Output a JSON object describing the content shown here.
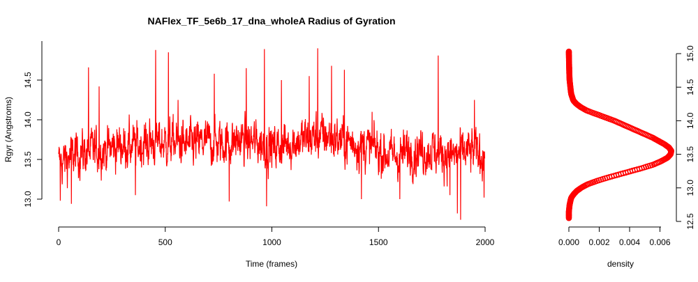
{
  "chart_data": [
    {
      "type": "line",
      "title": "NAFlex_TF_5e6b_17_dna_wholeA Radius of Gyration",
      "xlabel": "Time (frames)",
      "ylabel": "Rgyr (Angstroms)",
      "xlim": [
        0,
        2000
      ],
      "ylim": [
        12.9,
        14.75
      ],
      "xticks": [
        0,
        500,
        1000,
        1500,
        2000
      ],
      "xtick_labels": [
        "0",
        "500",
        "1000",
        "1500",
        "2000"
      ],
      "yticks": [
        13.0,
        13.5,
        14.0,
        14.5
      ],
      "ytick_labels": [
        "13.0",
        "13.5",
        "14.0",
        "14.5"
      ],
      "grid": false,
      "legend": "none",
      "color": "#ff0000",
      "series": [
        {
          "frames": 2000,
          "x": [
            0,
            50,
            100,
            150,
            200,
            250,
            300,
            350,
            400,
            450,
            500,
            550,
            600,
            650,
            700,
            750,
            800,
            850,
            900,
            950,
            1000,
            1050,
            1100,
            1150,
            1200,
            1250,
            1300,
            1350,
            1400,
            1450,
            1500,
            1550,
            1600,
            1650,
            1700,
            1750,
            1800,
            1850,
            1900,
            1950,
            2000
          ],
          "mean": [
            13.45,
            13.52,
            13.58,
            13.6,
            13.62,
            13.65,
            13.68,
            13.66,
            13.7,
            13.72,
            13.7,
            13.72,
            13.68,
            13.7,
            13.72,
            13.7,
            13.72,
            13.74,
            13.72,
            13.7,
            13.65,
            13.68,
            13.72,
            13.75,
            13.78,
            13.8,
            13.76,
            13.72,
            13.7,
            13.66,
            13.62,
            13.55,
            13.55,
            13.6,
            13.62,
            13.6,
            13.58,
            13.55,
            13.58,
            13.6,
            13.55
          ],
          "spread": 0.23,
          "spikes": [
            {
              "x": 8,
              "y": 12.98
            },
            {
              "x": 60,
              "y": 12.94
            },
            {
              "x": 140,
              "y": 14.66
            },
            {
              "x": 190,
              "y": 14.42
            },
            {
              "x": 360,
              "y": 13.05
            },
            {
              "x": 455,
              "y": 14.88
            },
            {
              "x": 515,
              "y": 14.85
            },
            {
              "x": 560,
              "y": 14.25
            },
            {
              "x": 730,
              "y": 14.58
            },
            {
              "x": 800,
              "y": 12.97
            },
            {
              "x": 880,
              "y": 14.65
            },
            {
              "x": 965,
              "y": 14.89
            },
            {
              "x": 975,
              "y": 12.91
            },
            {
              "x": 1045,
              "y": 14.5
            },
            {
              "x": 1175,
              "y": 14.55
            },
            {
              "x": 1215,
              "y": 14.9
            },
            {
              "x": 1280,
              "y": 14.68
            },
            {
              "x": 1340,
              "y": 14.63
            },
            {
              "x": 1420,
              "y": 13.0
            },
            {
              "x": 1470,
              "y": 14.1
            },
            {
              "x": 1600,
              "y": 13.0
            },
            {
              "x": 1780,
              "y": 14.81
            },
            {
              "x": 1835,
              "y": 13.05
            },
            {
              "x": 1870,
              "y": 12.82
            },
            {
              "x": 1885,
              "y": 12.74
            },
            {
              "x": 1950,
              "y": 14.25
            },
            {
              "x": 1995,
              "y": 13.02
            }
          ]
        }
      ]
    },
    {
      "type": "line",
      "xlabel": "density",
      "ylabel": "",
      "xlim": [
        0,
        0.0068
      ],
      "ylim": [
        12.5,
        15.0
      ],
      "xticks": [
        0.0,
        0.002,
        0.004,
        0.006
      ],
      "xtick_labels": [
        "0.000",
        "0.002",
        "0.004",
        "0.006"
      ],
      "yticks": [
        12.5,
        13.0,
        13.5,
        14.0,
        14.5,
        15.0
      ],
      "ytick_labels": [
        "12.5",
        "13.0",
        "13.5",
        "14.0",
        "14.5",
        "15.0"
      ],
      "y_axis_side": "right",
      "marker": "open-circle",
      "color": "#ff0000",
      "series": [
        {
          "y": [
            12.55,
            12.65,
            12.75,
            12.85,
            12.9,
            12.95,
            13.0,
            13.05,
            13.1,
            13.15,
            13.2,
            13.25,
            13.3,
            13.35,
            13.4,
            13.45,
            13.5,
            13.55,
            13.6,
            13.65,
            13.7,
            13.75,
            13.8,
            13.85,
            13.9,
            13.95,
            14.0,
            14.05,
            14.1,
            14.15,
            14.2,
            14.25,
            14.3,
            14.4,
            14.5,
            14.6,
            14.7,
            14.8,
            14.9,
            15.0,
            15.03
          ],
          "density": [
            0.0,
            0.0,
            5e-05,
            0.00015,
            0.0003,
            0.0005,
            0.0008,
            0.0012,
            0.0018,
            0.0025,
            0.0033,
            0.0041,
            0.0049,
            0.0056,
            0.0061,
            0.0065,
            0.0067,
            0.00675,
            0.0066,
            0.0063,
            0.0059,
            0.0055,
            0.005,
            0.0045,
            0.004,
            0.0035,
            0.003,
            0.0024,
            0.0018,
            0.0012,
            0.0008,
            0.0005,
            0.0003,
            0.00015,
            0.0001,
            5e-05,
            3e-05,
            2e-05,
            1e-05,
            0.0,
            0.0
          ]
        }
      ]
    }
  ]
}
